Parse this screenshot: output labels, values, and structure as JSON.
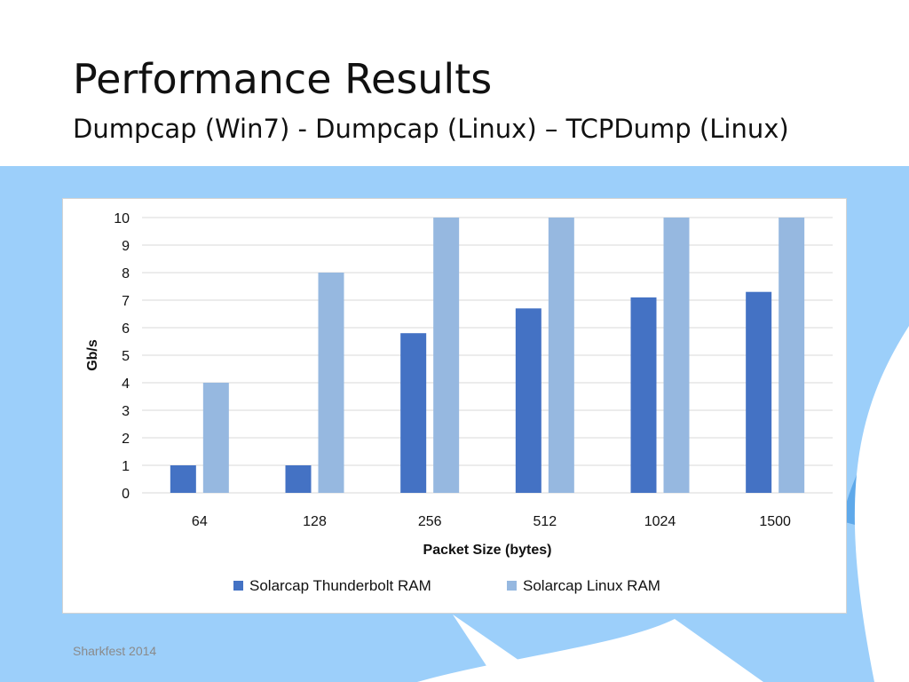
{
  "slide": {
    "title": "Performance Results",
    "subtitle": "Dumpcap (Win7) - Dumpcap (Linux) – TCPDump (Linux)",
    "footer": "Sharkfest 2014"
  },
  "colors": {
    "background_light": "#9ccffa",
    "background_accent": "#5fa9ea",
    "series_1": "#4472c4",
    "series_2": "#96b8e0",
    "gridline": "#d9d9d9"
  },
  "chart_data": {
    "type": "bar",
    "categories": [
      "64",
      "128",
      "256",
      "512",
      "1024",
      "1500"
    ],
    "series": [
      {
        "name": "Solarcap Thunderbolt RAM",
        "values": [
          1,
          1,
          5.8,
          6.7,
          7.1,
          7.3
        ]
      },
      {
        "name": "Solarcap Linux RAM",
        "values": [
          4,
          8,
          10,
          10,
          10,
          10
        ]
      }
    ],
    "xlabel": "Packet Size (bytes)",
    "ylabel": "Gb/s",
    "ylim": [
      0,
      10
    ],
    "yticks": [
      0,
      1,
      2,
      3,
      4,
      5,
      6,
      7,
      8,
      9,
      10
    ],
    "grid": true,
    "legend": "bottom"
  }
}
